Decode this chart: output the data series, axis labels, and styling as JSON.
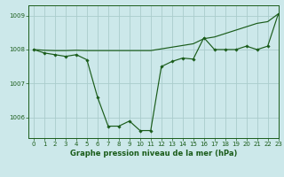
{
  "title": "Graphe pression niveau de la mer (hPa)",
  "background_color": "#cce8ea",
  "grid_color": "#aacccc",
  "line_color": "#1a5c1a",
  "xlim": [
    -0.5,
    23
  ],
  "ylim": [
    1005.4,
    1009.3
  ],
  "yticks": [
    1006,
    1007,
    1008,
    1009
  ],
  "xticks": [
    0,
    1,
    2,
    3,
    4,
    5,
    6,
    7,
    8,
    9,
    10,
    11,
    12,
    13,
    14,
    15,
    16,
    17,
    18,
    19,
    20,
    21,
    22,
    23
  ],
  "series1_x": [
    0,
    1,
    2,
    3,
    4,
    5,
    6,
    7,
    8,
    9,
    10,
    11,
    12,
    13,
    14,
    15,
    16,
    17,
    18,
    19,
    20,
    21,
    22,
    23
  ],
  "series1_y": [
    1008.0,
    1007.9,
    1007.85,
    1007.8,
    1007.85,
    1007.7,
    1006.6,
    1005.75,
    1005.75,
    1005.9,
    1005.62,
    1005.62,
    1007.5,
    1007.65,
    1007.75,
    1007.72,
    1008.35,
    1008.0,
    1008.0,
    1008.0,
    1008.1,
    1008.0,
    1008.1,
    1009.05
  ],
  "series2_x": [
    0,
    1,
    2,
    3,
    4,
    5,
    6,
    7,
    8,
    9,
    10,
    11,
    12,
    13,
    14,
    15,
    16,
    17,
    18,
    19,
    20,
    21,
    22,
    23
  ],
  "series2_y": [
    1008.0,
    1007.98,
    1007.97,
    1007.97,
    1007.98,
    1007.97,
    1007.97,
    1007.97,
    1007.97,
    1007.97,
    1007.97,
    1007.97,
    1008.02,
    1008.07,
    1008.12,
    1008.17,
    1008.32,
    1008.37,
    1008.47,
    1008.57,
    1008.67,
    1008.77,
    1008.82,
    1009.05
  ],
  "title_fontsize": 6.0,
  "tick_fontsize": 5.0
}
